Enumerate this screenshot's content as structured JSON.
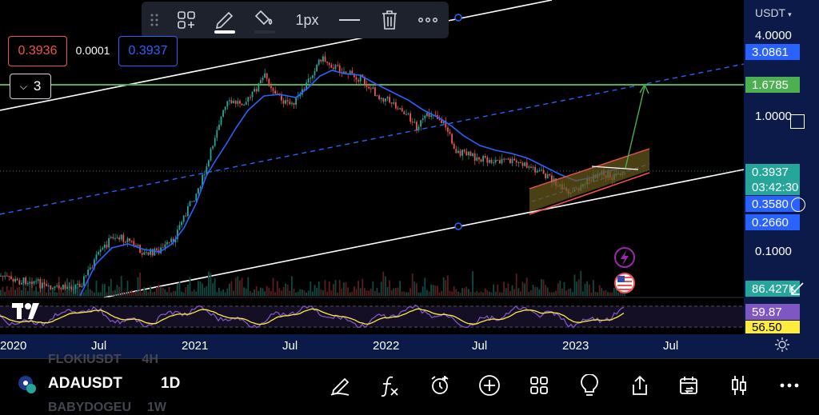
{
  "toolbar": {
    "width_label": "1px",
    "items": [
      "drag-handle",
      "layout-add",
      "pencil",
      "fill-bucket",
      "width",
      "line-style",
      "trash",
      "more"
    ]
  },
  "price_boxes": {
    "sell": "0.3936",
    "spread": "0.0001",
    "buy": "0.3937"
  },
  "collapse": {
    "count": "3"
  },
  "axis": {
    "currency": "USDT",
    "labels": [
      "4.0000",
      "1.0000",
      "0.1000"
    ],
    "tags": [
      {
        "value": "3.0861",
        "color": "#2962ff"
      },
      {
        "value": "1.6785",
        "color": "#4caf50"
      },
      {
        "value": "0.3937",
        "color": "#26a69a"
      },
      {
        "value": "03:42:30",
        "color": "#26a69a"
      },
      {
        "value": "0.3580",
        "color": "#2962ff"
      },
      {
        "value": "0.2660",
        "color": "#2962ff"
      },
      {
        "value": "86.427K",
        "color": "#26a69a"
      },
      {
        "value": "59.87",
        "color": "#7e57c2"
      },
      {
        "value": "56.50",
        "color": "#ffeb3b"
      }
    ]
  },
  "time_axis": [
    "2020",
    "Jul",
    "2021",
    "Jul",
    "2022",
    "Jul",
    "2023",
    "Jul"
  ],
  "bottom": {
    "symbol": "ADAUSDT",
    "interval": "1D",
    "ghost_top": "FLOKIUSDT",
    "ghost_top_interval": "4H",
    "ghost_bottom": "BABYDOGEU",
    "ghost_bottom_interval": "1W"
  },
  "logo": "TV",
  "colors": {
    "accent_blue": "#2962ff",
    "green_line": "#4caf50",
    "channel_fill": "#8d6e1f",
    "channel_line": "#ef5350",
    "rsi": "#7e57c2",
    "rsi_ma": "#ffeb3b"
  }
}
